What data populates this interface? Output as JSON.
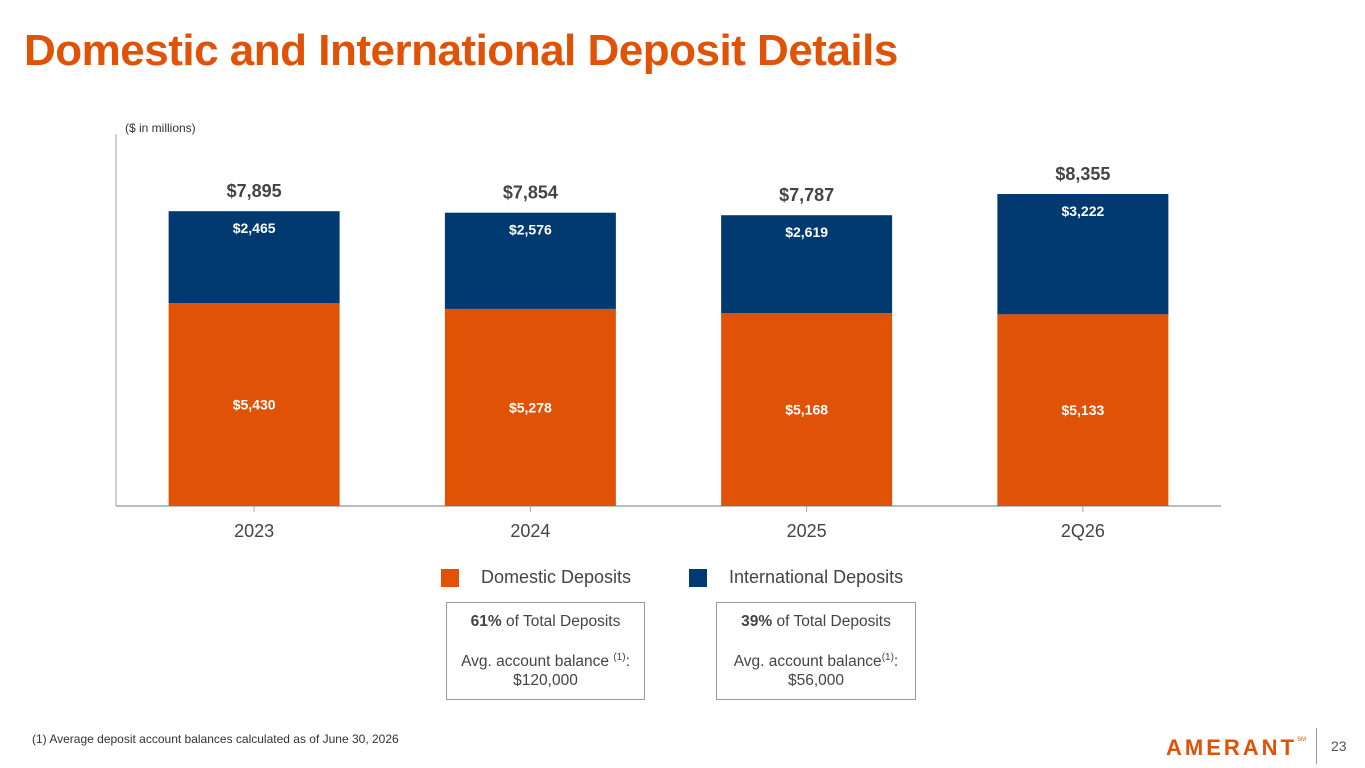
{
  "page": {
    "title": "Domestic and International Deposit Details",
    "unit_note": "($ in millions)",
    "footnote": "(1) Average deposit account balances  calculated as of June 30, 2026",
    "logo_text": "AMERANT",
    "logo_tm": "SM",
    "page_number": "23"
  },
  "colors": {
    "domestic": "#e05206",
    "international": "#003a70",
    "title": "#e05206"
  },
  "chart_data": {
    "type": "bar",
    "stacked": true,
    "categories": [
      "2023",
      "2024",
      "2025",
      "2Q26"
    ],
    "series": [
      {
        "name": "Domestic Deposits",
        "values": [
          5430,
          5278,
          5168,
          5133
        ],
        "labels": [
          "$5,430",
          "$5,278",
          "$5,168",
          "$5,133"
        ]
      },
      {
        "name": "International Deposits",
        "values": [
          2465,
          2576,
          2619,
          3222
        ],
        "labels": [
          "$2,465",
          "$2,576",
          "$2,619",
          "$3,222"
        ]
      }
    ],
    "totals": [
      7895,
      7854,
      7787,
      8355
    ],
    "total_labels": [
      "$7,895",
      "$7,854",
      "$7,787",
      "$8,355"
    ],
    "ylim": [
      0,
      8355
    ],
    "ylabel": "($ in millions)",
    "xlabel": "",
    "grid": false,
    "legend_position": "bottom-center"
  },
  "legend": {
    "domestic": "Domestic Deposits",
    "international": "International Deposits"
  },
  "boxes": {
    "domestic": {
      "share_bold": "61%",
      "share_rest": " of Total Deposits",
      "avg_label": "Avg. account balance ",
      "avg_sup": "(1)",
      "avg_colon": ":",
      "avg_value": "$120,000"
    },
    "international": {
      "share_bold": "39%",
      "share_rest": " of Total Deposits",
      "avg_label": "Avg. account balance",
      "avg_sup": "(1)",
      "avg_colon": ":",
      "avg_value": "$56,000"
    }
  }
}
